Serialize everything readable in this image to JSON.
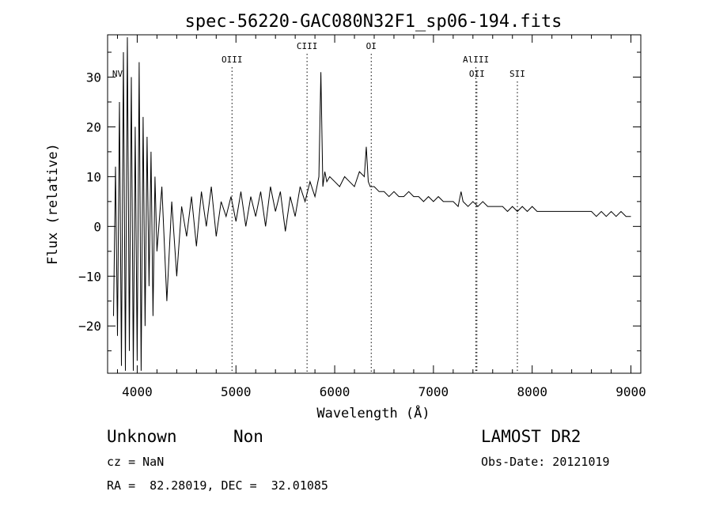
{
  "chart_data": {
    "type": "line",
    "title": "spec-56220-GAC080N32F1_sp06-194.fits",
    "xlabel": "Wavelength (Å)",
    "ylabel": "Flux (relative)",
    "xlim": [
      3700,
      9100
    ],
    "ylim": [
      -29.5,
      38.5
    ],
    "xticks": [
      4000,
      5000,
      6000,
      7000,
      8000,
      9000
    ],
    "yticks": [
      -20,
      -10,
      0,
      10,
      20,
      30
    ],
    "grid": false,
    "legend": "none",
    "line_color": "#000000",
    "series": [
      {
        "x": [
          3760,
          3780,
          3800,
          3820,
          3840,
          3860,
          3880,
          3900,
          3920,
          3940,
          3960,
          3980,
          4000,
          4020,
          4040,
          4060,
          4080,
          4100,
          4120,
          4140,
          4160,
          4180,
          4200,
          4250,
          4300,
          4350,
          4400,
          4450,
          4500,
          4550,
          4600,
          4650,
          4700,
          4750,
          4800,
          4850,
          4900,
          4950,
          5000,
          5050,
          5100,
          5150,
          5200,
          5250,
          5300,
          5350,
          5400,
          5450,
          5500,
          5550,
          5600,
          5650,
          5700,
          5750,
          5800,
          5840,
          5860,
          5880,
          5900,
          5920,
          5950,
          6000,
          6050,
          6100,
          6150,
          6200,
          6250,
          6300,
          6320,
          6340,
          6360,
          6400,
          6450,
          6500,
          6550,
          6600,
          6650,
          6700,
          6750,
          6800,
          6850,
          6900,
          6950,
          7000,
          7050,
          7100,
          7150,
          7200,
          7250,
          7280,
          7300,
          7350,
          7400,
          7450,
          7500,
          7550,
          7600,
          7650,
          7700,
          7750,
          7800,
          7850,
          7900,
          7950,
          8000,
          8050,
          8100,
          8150,
          8200,
          8250,
          8300,
          8350,
          8400,
          8450,
          8500,
          8550,
          8600,
          8650,
          8700,
          8750,
          8800,
          8850,
          8900,
          8950,
          9000
        ],
        "y": [
          -18,
          12,
          -22,
          25,
          -28,
          35,
          -29,
          38,
          -25,
          30,
          -29,
          20,
          -27,
          33,
          -29,
          22,
          -20,
          18,
          -12,
          15,
          -18,
          10,
          -5,
          8,
          -15,
          5,
          -10,
          4,
          -2,
          6,
          -4,
          7,
          0,
          8,
          -2,
          5,
          2,
          6,
          1,
          7,
          0,
          6,
          2,
          7,
          0,
          8,
          3,
          7,
          -1,
          6,
          2,
          8,
          5,
          9,
          6,
          10,
          31,
          8,
          11,
          9,
          10,
          9,
          8,
          10,
          9,
          8,
          11,
          10,
          16,
          9,
          8,
          8,
          7,
          7,
          6,
          7,
          6,
          6,
          7,
          6,
          6,
          5,
          6,
          5,
          6,
          5,
          5,
          5,
          4,
          7,
          5,
          4,
          5,
          4,
          5,
          4,
          4,
          4,
          4,
          3,
          4,
          3,
          4,
          3,
          4,
          3,
          3,
          3,
          3,
          3,
          3,
          3,
          3,
          3,
          3,
          3,
          3,
          2,
          3,
          2,
          3,
          2,
          3,
          2,
          2
        ]
      }
    ],
    "lines": [
      {
        "label": "NV",
        "x": 3800,
        "label_row": 2
      },
      {
        "label": "OIII",
        "x": 4960,
        "label_row": 1
      },
      {
        "label": "CIII",
        "x": 5720,
        "label_row": 0
      },
      {
        "label": "OI",
        "x": 6370,
        "label_row": 0
      },
      {
        "label": "AlIII",
        "x": 7430,
        "label_row": 1
      },
      {
        "label": "OII",
        "x": 7440,
        "label_row": 2
      },
      {
        "label": "SII",
        "x": 7850,
        "label_row": 2
      }
    ]
  },
  "info": {
    "class": "Unknown",
    "subclass": "Non",
    "survey": "LAMOST DR2",
    "cz": "cz = NaN",
    "obs_date": "Obs-Date: 20121019",
    "coords": "RA =  82.28019, DEC =  32.01085"
  }
}
